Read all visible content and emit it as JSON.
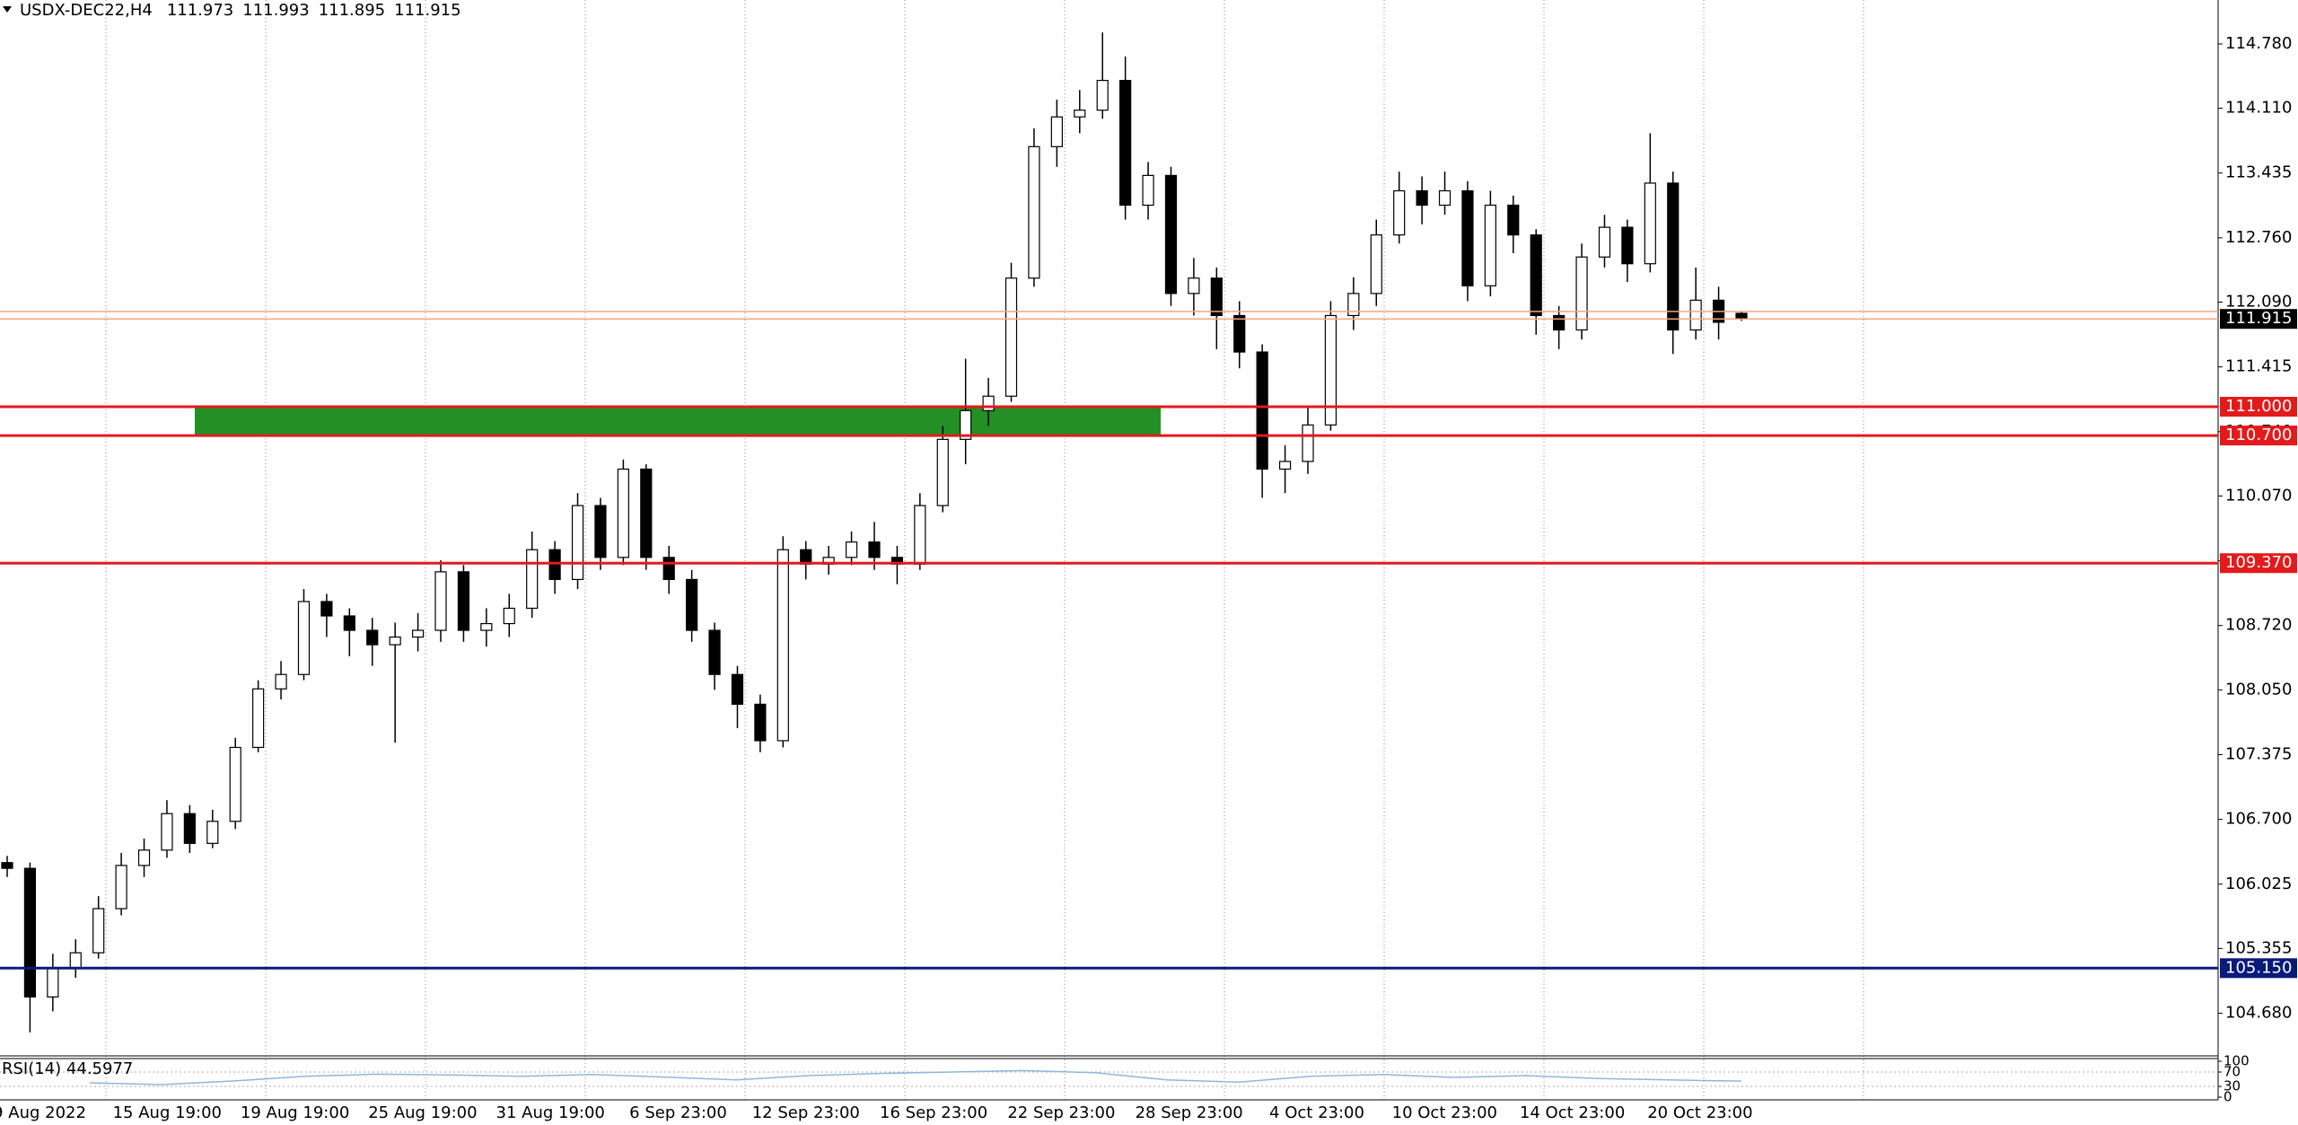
{
  "chart_data": {
    "type": "candlestick",
    "symbol": "USDX-DEC22,H4",
    "ohlc": [
      111.973,
      111.993,
      111.895,
      111.915
    ],
    "up_color": "#ffffff",
    "down_color": "#000000",
    "open": [
      106.25,
      106.19,
      104.85,
      105.15,
      105.31,
      105.77,
      106.22,
      106.38,
      106.76,
      106.45,
      106.68,
      107.45,
      108.06,
      108.21,
      108.97,
      108.82,
      108.67,
      108.52,
      108.6,
      108.67,
      109.28,
      108.67,
      108.74,
      108.9,
      109.51,
      109.2,
      109.97,
      109.43,
      110.35,
      109.43,
      109.2,
      108.67,
      108.21,
      107.9,
      107.52,
      109.51,
      109.36,
      109.43,
      109.59,
      109.43,
      109.36,
      109.97,
      110.66,
      110.96,
      111.11,
      112.34,
      113.71,
      114.02,
      114.09,
      114.4,
      113.1,
      113.41,
      112.18,
      112.34,
      111.95,
      111.57,
      110.35,
      110.43,
      110.81,
      111.95,
      112.18,
      112.79,
      113.25,
      113.1,
      113.25,
      112.26,
      113.1,
      112.79,
      111.95,
      111.8,
      112.56,
      112.87,
      112.49,
      113.33,
      111.8,
      112.11,
      111.973
    ],
    "high": [
      106.32,
      106.25,
      105.3,
      105.45,
      105.9,
      106.35,
      106.5,
      106.9,
      106.85,
      106.8,
      107.55,
      108.15,
      108.35,
      109.1,
      109.05,
      108.9,
      108.8,
      108.75,
      108.85,
      109.4,
      109.35,
      108.9,
      109.05,
      109.7,
      109.6,
      110.1,
      110.05,
      110.45,
      110.4,
      109.55,
      109.3,
      108.75,
      108.3,
      108.0,
      109.65,
      109.6,
      109.55,
      109.7,
      109.8,
      109.55,
      110.1,
      110.8,
      111.5,
      111.3,
      112.5,
      113.9,
      114.2,
      114.3,
      114.9,
      114.65,
      113.55,
      113.5,
      112.55,
      112.45,
      112.1,
      111.65,
      110.6,
      111.0,
      112.1,
      112.35,
      112.95,
      113.45,
      113.4,
      113.45,
      113.35,
      113.25,
      113.2,
      112.85,
      112.05,
      112.7,
      113.0,
      112.95,
      113.85,
      113.45,
      112.45,
      112.25,
      111.993
    ],
    "low": [
      106.1,
      104.48,
      104.7,
      105.05,
      105.25,
      105.7,
      106.1,
      106.3,
      106.35,
      106.4,
      106.6,
      107.4,
      107.95,
      108.15,
      108.6,
      108.4,
      108.3,
      107.5,
      108.45,
      108.55,
      108.55,
      108.5,
      108.6,
      108.8,
      109.05,
      109.1,
      109.3,
      109.35,
      109.3,
      109.05,
      108.55,
      108.05,
      107.65,
      107.4,
      107.45,
      109.2,
      109.25,
      109.35,
      109.3,
      109.15,
      109.3,
      109.9,
      110.4,
      110.8,
      111.05,
      112.25,
      113.5,
      113.85,
      114.0,
      112.95,
      112.95,
      112.05,
      111.95,
      111.6,
      111.4,
      110.05,
      110.1,
      110.3,
      110.75,
      111.8,
      112.05,
      112.7,
      112.9,
      113.0,
      112.1,
      112.15,
      112.6,
      111.75,
      111.6,
      111.7,
      112.45,
      112.3,
      112.4,
      111.55,
      111.7,
      111.7,
      111.895
    ],
    "close": [
      106.19,
      104.85,
      105.15,
      105.31,
      105.77,
      106.22,
      106.38,
      106.76,
      106.45,
      106.68,
      107.45,
      108.06,
      108.21,
      108.97,
      108.82,
      108.67,
      108.52,
      108.6,
      108.67,
      109.28,
      108.67,
      108.74,
      108.9,
      109.51,
      109.2,
      109.97,
      109.43,
      110.35,
      109.43,
      109.2,
      108.67,
      108.21,
      107.9,
      107.52,
      109.51,
      109.36,
      109.43,
      109.59,
      109.43,
      109.36,
      109.97,
      110.66,
      110.96,
      111.11,
      112.34,
      113.71,
      114.02,
      114.09,
      114.4,
      113.1,
      113.41,
      112.18,
      112.34,
      111.95,
      111.57,
      110.35,
      110.43,
      110.81,
      111.95,
      112.18,
      112.79,
      113.25,
      113.1,
      113.25,
      112.26,
      113.1,
      112.79,
      111.95,
      111.8,
      112.56,
      112.87,
      112.49,
      113.33,
      111.8,
      112.11,
      111.88,
      111.915
    ],
    "ylim": [
      104.236,
      115.238
    ],
    "yticks": [
      {
        "value": 114.78,
        "label": "114.780"
      },
      {
        "value": 114.11,
        "label": "114.110"
      },
      113.435,
      {
        "value": 112.76,
        "label": "112.760"
      },
      {
        "value": 112.09,
        "label": "112.090"
      },
      111.415,
      {
        "value": 110.74,
        "label": "110.740"
      },
      {
        "value": 110.07,
        "label": "110.070"
      },
      109.395,
      {
        "value": 108.72,
        "label": "108.720"
      },
      {
        "value": 108.05,
        "label": "108.050"
      },
      107.375,
      {
        "value": 106.7,
        "label": "106.700"
      },
      106.025,
      105.355,
      {
        "value": 104.68,
        "label": "104.680"
      }
    ],
    "date_labels": [
      "9 Aug 2022",
      "15 Aug 19:00",
      "19 Aug 19:00",
      "25 Aug 19:00",
      "31 Aug 19:00",
      "6 Sep 23:00",
      "12 Sep 23:00",
      "16 Sep 23:00",
      "22 Sep 23:00",
      "28 Sep 23:00",
      "4 Oct 23:00",
      "10 Oct 23:00",
      "14 Oct 23:00",
      "20 Oct 23:00"
    ],
    "levels": [
      {
        "value": 111.0,
        "label": "111.000",
        "color": "#e31a1c"
      },
      {
        "value": 110.7,
        "label": "110.700",
        "color": "#e31a1c"
      },
      {
        "value": 109.37,
        "label": "109.370",
        "color": "#e31a1c"
      },
      {
        "value": 105.15,
        "label": "105.150",
        "color": "#0a1a7a"
      }
    ],
    "zone": {
      "from": 110.7,
      "to": 111.0,
      "color": "#248f24"
    },
    "ask_line": {
      "value": 111.993,
      "color": "#f4a582"
    },
    "last_price": {
      "value": 111.915,
      "color": "#000000",
      "line_color": "#f4a582"
    },
    "indicator": {
      "label": "RSI(14) 44.5977",
      "color": "#8fb6d8",
      "ylim": [
        0,
        100
      ],
      "yticks": [
        0,
        30,
        70,
        100
      ],
      "values": [
        40,
        35,
        45,
        58,
        64,
        62,
        58,
        63,
        56,
        48,
        60,
        66,
        70,
        74,
        68,
        48,
        42,
        58,
        63,
        55,
        60,
        52,
        48,
        44.6
      ]
    }
  }
}
